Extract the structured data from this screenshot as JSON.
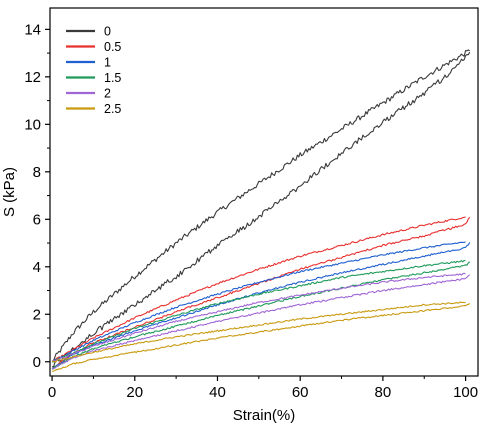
{
  "chart_data": {
    "type": "line",
    "title": "",
    "xlabel": "Strain(%)",
    "ylabel": "S (kPa)",
    "xlim": [
      -0.5,
      103
    ],
    "ylim": [
      -0.6,
      14.9
    ],
    "xticks": [
      0,
      20,
      40,
      60,
      80,
      100
    ],
    "yticks": [
      0,
      2,
      4,
      6,
      8,
      10,
      12,
      14
    ],
    "grid": false,
    "legend_position": "top-left",
    "series": [
      {
        "name": "0",
        "color": "#3a3a3a",
        "loading": [
          [
            0,
            0.0
          ],
          [
            5,
            1.2
          ],
          [
            10,
            2.1
          ],
          [
            20,
            3.6
          ],
          [
            30,
            5.0
          ],
          [
            40,
            6.3
          ],
          [
            50,
            7.5
          ],
          [
            60,
            8.7
          ],
          [
            70,
            9.8
          ],
          [
            80,
            10.9
          ],
          [
            90,
            12.0
          ],
          [
            100,
            13.0
          ],
          [
            101,
            13.1
          ]
        ],
        "unloading": [
          [
            101,
            13.1
          ],
          [
            100,
            12.8
          ],
          [
            95,
            12.0
          ],
          [
            90,
            11.3
          ],
          [
            80,
            10.1
          ],
          [
            70,
            8.8
          ],
          [
            60,
            7.4
          ],
          [
            50,
            6.1
          ],
          [
            40,
            4.9
          ],
          [
            30,
            3.6
          ],
          [
            20,
            2.4
          ],
          [
            10,
            1.2
          ],
          [
            5,
            0.5
          ],
          [
            0,
            -0.2
          ]
        ]
      },
      {
        "name": "0.5",
        "color": "#e8302e",
        "loading": [
          [
            0,
            0.0
          ],
          [
            10,
            1.0
          ],
          [
            20,
            1.85
          ],
          [
            30,
            2.6
          ],
          [
            40,
            3.3
          ],
          [
            50,
            3.9
          ],
          [
            60,
            4.45
          ],
          [
            70,
            4.9
          ],
          [
            80,
            5.35
          ],
          [
            90,
            5.75
          ],
          [
            100,
            6.1
          ]
        ],
        "unloading": [
          [
            101,
            6.1
          ],
          [
            100,
            5.8
          ],
          [
            90,
            5.3
          ],
          [
            80,
            4.9
          ],
          [
            70,
            4.4
          ],
          [
            60,
            3.9
          ],
          [
            50,
            3.3
          ],
          [
            40,
            2.7
          ],
          [
            30,
            2.1
          ],
          [
            20,
            1.45
          ],
          [
            10,
            0.8
          ],
          [
            5,
            0.35
          ],
          [
            0,
            -0.3
          ]
        ]
      },
      {
        "name": "1",
        "color": "#1f5fd0",
        "loading": [
          [
            0,
            0.0
          ],
          [
            10,
            0.9
          ],
          [
            20,
            1.65
          ],
          [
            30,
            2.3
          ],
          [
            40,
            2.85
          ],
          [
            50,
            3.35
          ],
          [
            60,
            3.8
          ],
          [
            70,
            4.15
          ],
          [
            80,
            4.5
          ],
          [
            90,
            4.8
          ],
          [
            100,
            5.05
          ]
        ],
        "unloading": [
          [
            101,
            5.0
          ],
          [
            100,
            4.8
          ],
          [
            90,
            4.45
          ],
          [
            80,
            4.1
          ],
          [
            70,
            3.75
          ],
          [
            60,
            3.35
          ],
          [
            50,
            2.9
          ],
          [
            40,
            2.4
          ],
          [
            30,
            1.85
          ],
          [
            20,
            1.3
          ],
          [
            10,
            0.7
          ],
          [
            5,
            0.3
          ],
          [
            0,
            -0.3
          ]
        ]
      },
      {
        "name": "1.5",
        "color": "#1e9a5a",
        "loading": [
          [
            0,
            0.0
          ],
          [
            10,
            0.75
          ],
          [
            20,
            1.4
          ],
          [
            30,
            1.95
          ],
          [
            40,
            2.45
          ],
          [
            50,
            2.85
          ],
          [
            60,
            3.2
          ],
          [
            70,
            3.55
          ],
          [
            80,
            3.8
          ],
          [
            90,
            4.05
          ],
          [
            100,
            4.25
          ]
        ],
        "unloading": [
          [
            101,
            4.2
          ],
          [
            100,
            4.05
          ],
          [
            90,
            3.75
          ],
          [
            80,
            3.45
          ],
          [
            70,
            3.1
          ],
          [
            60,
            2.75
          ],
          [
            50,
            2.35
          ],
          [
            40,
            1.95
          ],
          [
            30,
            1.5
          ],
          [
            20,
            1.05
          ],
          [
            10,
            0.55
          ],
          [
            5,
            0.2
          ],
          [
            0,
            -0.3
          ]
        ]
      },
      {
        "name": "2",
        "color": "#a066d6",
        "loading": [
          [
            0,
            0.0
          ],
          [
            10,
            0.65
          ],
          [
            20,
            1.2
          ],
          [
            30,
            1.7
          ],
          [
            40,
            2.1
          ],
          [
            50,
            2.5
          ],
          [
            60,
            2.8
          ],
          [
            70,
            3.1
          ],
          [
            80,
            3.35
          ],
          [
            90,
            3.55
          ],
          [
            100,
            3.7
          ]
        ],
        "unloading": [
          [
            101,
            3.65
          ],
          [
            100,
            3.5
          ],
          [
            90,
            3.25
          ],
          [
            80,
            3.0
          ],
          [
            70,
            2.7
          ],
          [
            60,
            2.4
          ],
          [
            50,
            2.05
          ],
          [
            40,
            1.7
          ],
          [
            30,
            1.3
          ],
          [
            20,
            0.9
          ],
          [
            10,
            0.45
          ],
          [
            5,
            0.15
          ],
          [
            0,
            -0.3
          ]
        ]
      },
      {
        "name": "2.5",
        "color": "#c99a10",
        "loading": [
          [
            0,
            0.0
          ],
          [
            10,
            0.4
          ],
          [
            20,
            0.75
          ],
          [
            30,
            1.05
          ],
          [
            40,
            1.3
          ],
          [
            50,
            1.55
          ],
          [
            60,
            1.8
          ],
          [
            70,
            2.0
          ],
          [
            80,
            2.2
          ],
          [
            90,
            2.4
          ],
          [
            100,
            2.5
          ]
        ],
        "unloading": [
          [
            101,
            2.45
          ],
          [
            100,
            2.35
          ],
          [
            90,
            2.15
          ],
          [
            80,
            1.95
          ],
          [
            70,
            1.75
          ],
          [
            60,
            1.5
          ],
          [
            50,
            1.25
          ],
          [
            40,
            1.0
          ],
          [
            30,
            0.7
          ],
          [
            20,
            0.4
          ],
          [
            10,
            0.1
          ],
          [
            5,
            -0.1
          ],
          [
            0,
            -0.4
          ]
        ]
      }
    ]
  }
}
